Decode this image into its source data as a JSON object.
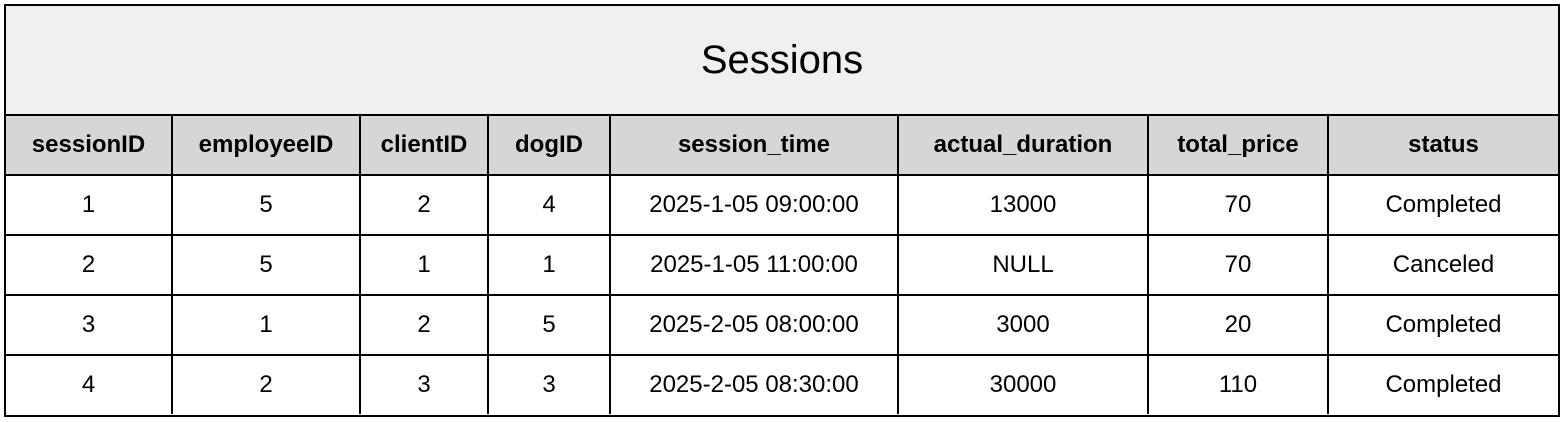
{
  "title": "Sessions",
  "columns": [
    "sessionID",
    "employeeID",
    "clientID",
    "dogID",
    "session_time",
    "actual_duration",
    "total_price",
    "status"
  ],
  "rows": [
    [
      "1",
      "5",
      "2",
      "4",
      "2025-1-05 09:00:00",
      "13000",
      "70",
      "Completed"
    ],
    [
      "2",
      "5",
      "1",
      "1",
      "2025-1-05 11:00:00",
      "NULL",
      "70",
      "Canceled"
    ],
    [
      "3",
      "1",
      "2",
      "5",
      "2025-2-05 08:00:00",
      "3000",
      "20",
      "Completed"
    ],
    [
      "4",
      "2",
      "3",
      "3",
      "2025-2-05 08:30:00",
      "30000",
      "110",
      "Completed"
    ]
  ]
}
